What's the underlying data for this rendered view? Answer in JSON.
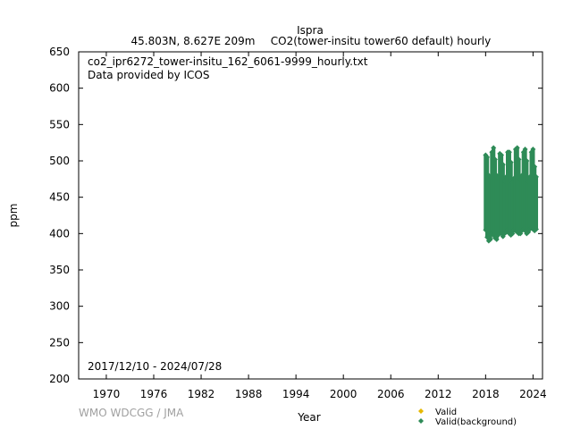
{
  "chart_data": {
    "type": "scatter",
    "title": "Ispra",
    "subtitle_left": "45.803N, 8.627E 209m",
    "subtitle_right": "CO2(tower-insitu tower60 default) hourly",
    "file_label": "co2_ipr6272_tower-insitu_162_6061-9999_hourly.txt",
    "provider_label": "Data provided by ICOS",
    "date_range_label": "2017/12/10 - 2024/07/28",
    "xlabel": "Year",
    "ylabel": "ppm",
    "xlim": [
      1966.5,
      2025.2
    ],
    "ylim": [
      200,
      650
    ],
    "x_ticks": [
      1970,
      1976,
      1982,
      1988,
      1994,
      2000,
      2006,
      2012,
      2018,
      2024
    ],
    "y_ticks": [
      200,
      250,
      300,
      350,
      400,
      450,
      500,
      550,
      600,
      650
    ],
    "grid": false,
    "legend_position": "bottom-right",
    "credit": "WMO WDCGG / JMA",
    "series": [
      {
        "name": "Valid",
        "color": "#e6b800",
        "marker": "diamond",
        "x": [],
        "y": []
      },
      {
        "name": "Valid(background)",
        "color": "#2e8b57",
        "marker": "diamond",
        "x": [
          2018.0,
          2018.2,
          2018.4,
          2018.6,
          2018.8,
          2019.0,
          2019.2,
          2019.4,
          2019.6,
          2019.8,
          2020.0,
          2020.2,
          2020.4,
          2020.6,
          2020.8,
          2021.0,
          2021.2,
          2021.4,
          2021.6,
          2021.8,
          2022.0,
          2022.2,
          2022.4,
          2022.6,
          2022.8,
          2023.0,
          2023.2,
          2023.4,
          2023.6,
          2023.8,
          2024.0,
          2024.2,
          2024.4
        ],
        "ymin": [
          405,
          395,
          390,
          392,
          400,
          398,
          394,
          392,
          398,
          402,
          400,
          396,
          400,
          402,
          405,
          400,
          398,
          400,
          405,
          404,
          402,
          400,
          400,
          404,
          406,
          404,
          400,
          402,
          406,
          408,
          406,
          404,
          406
        ],
        "ymax": [
          508,
          505,
          480,
          478,
          512,
          518,
          502,
          480,
          476,
          510,
          508,
          495,
          472,
          478,
          512,
          512,
          498,
          470,
          476,
          516,
          518,
          502,
          474,
          480,
          512,
          516,
          500,
          472,
          478,
          512,
          516,
          492,
          478
        ]
      }
    ]
  }
}
